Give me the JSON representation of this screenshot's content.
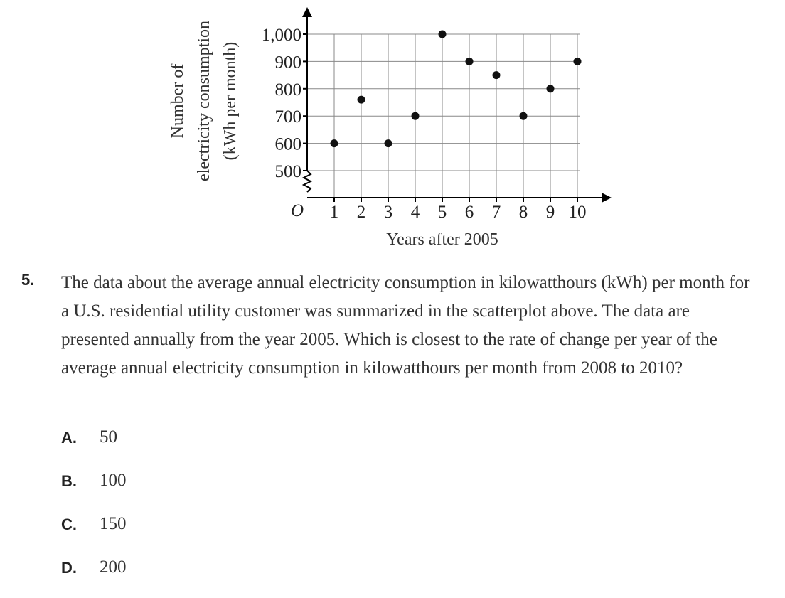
{
  "chart_data": {
    "type": "scatter",
    "xlabel": "Years after 2005",
    "ylabel_lines": [
      "Number of",
      "electricity consumption",
      "(kWh per month)"
    ],
    "origin_label": "O",
    "x_ticks": [
      "1",
      "2",
      "3",
      "4",
      "5",
      "6",
      "7",
      "8",
      "9",
      "10"
    ],
    "y_ticks": [
      "500",
      "600",
      "700",
      "800",
      "900",
      "1,000"
    ],
    "xlim": [
      0,
      10
    ],
    "ylim": [
      500,
      1000
    ],
    "y_axis_break": true,
    "grid": true,
    "points": [
      {
        "x": 1,
        "y": 600
      },
      {
        "x": 2,
        "y": 760
      },
      {
        "x": 3,
        "y": 600
      },
      {
        "x": 4,
        "y": 700
      },
      {
        "x": 5,
        "y": 1000
      },
      {
        "x": 6,
        "y": 900
      },
      {
        "x": 7,
        "y": 850
      },
      {
        "x": 8,
        "y": 700
      },
      {
        "x": 9,
        "y": 800
      },
      {
        "x": 10,
        "y": 900
      }
    ]
  },
  "question": {
    "number": "5.",
    "text": "The data about the average annual electricity consumption in kilowatthours (kWh) per month for a U.S. residential utility customer was summarized in the scatterplot above. The data are presented annually from the year 2005. Which is closest to the rate of change per year of the average annual electricity consumption in kilowatthours per month from 2008 to 2010?"
  },
  "choices": [
    {
      "letter": "A.",
      "text": "50"
    },
    {
      "letter": "B.",
      "text": "100"
    },
    {
      "letter": "C.",
      "text": "150"
    },
    {
      "letter": "D.",
      "text": "200"
    }
  ]
}
